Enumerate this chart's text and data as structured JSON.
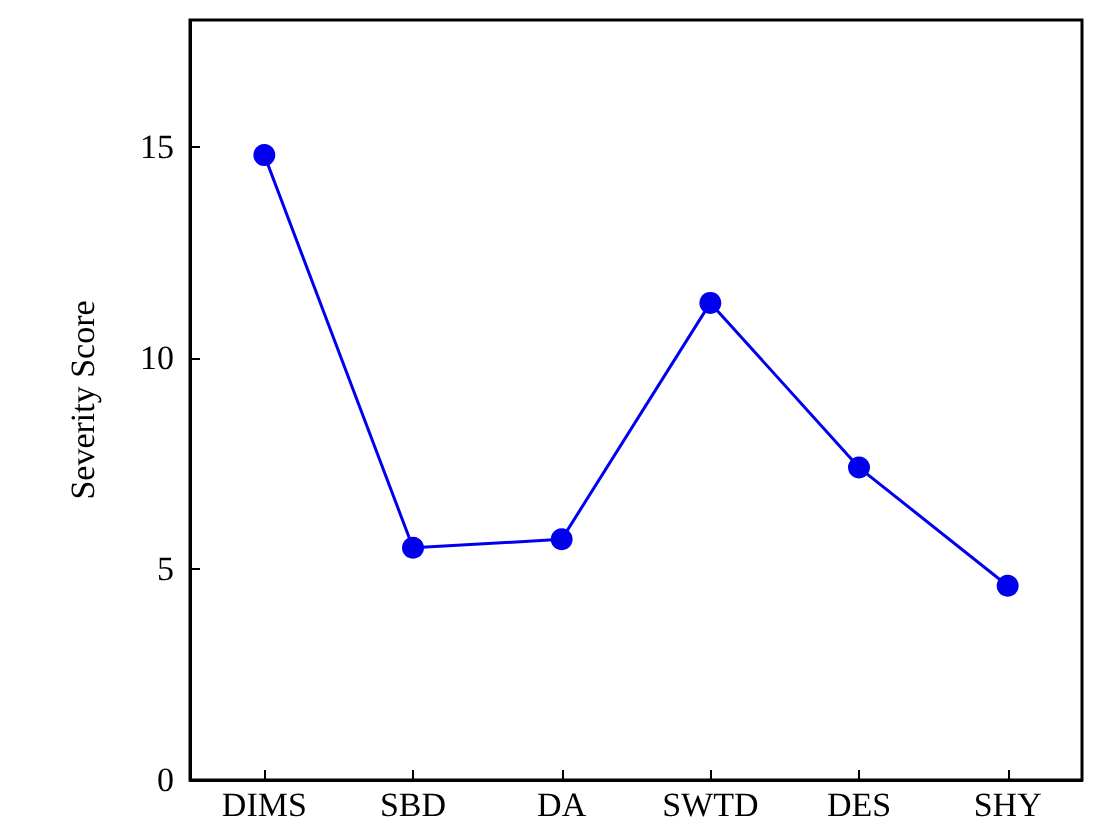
{
  "chart_data": {
    "type": "line",
    "ylabel": "Severity Score",
    "categories": [
      "DIMS",
      "SBD",
      "DA",
      "SWTD",
      "DES",
      "SHY"
    ],
    "series": [
      {
        "color": "#0000ee",
        "values": [
          14.8,
          5.5,
          5.7,
          11.3,
          7.4,
          4.6
        ]
      }
    ],
    "ylim": [
      0,
      18
    ],
    "yticks": [
      0,
      5,
      10,
      15
    ],
    "grid": false,
    "marker": "circle",
    "line_style": "solid"
  }
}
